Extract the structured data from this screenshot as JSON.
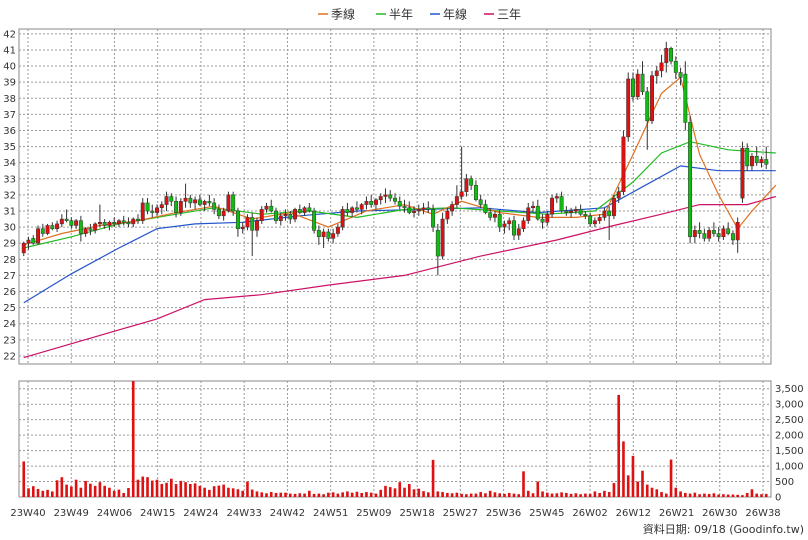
{
  "chart_data": {
    "type": "candlestick",
    "legend": {
      "position": "top-center",
      "items": [
        {
          "label": "季線",
          "color": "#e07020"
        },
        {
          "label": "半年",
          "color": "#22bb22"
        },
        {
          "label": "年線",
          "color": "#2255cc"
        },
        {
          "label": "三年",
          "color": "#cc1166"
        }
      ]
    },
    "x_ticks": [
      "23W40",
      "23W49",
      "24W06",
      "24W15",
      "24W24",
      "24W33",
      "24W42",
      "24W51",
      "25W09",
      "25W18",
      "25W27",
      "25W36",
      "25W45",
      "26W02",
      "26W12",
      "26W21",
      "26W30",
      "26W38"
    ],
    "price_axis": {
      "min": 21.5,
      "max": 42.3,
      "ticks": [
        22,
        23,
        24,
        25,
        26,
        27,
        28,
        29,
        30,
        31,
        32,
        33,
        34,
        35,
        36,
        37,
        38,
        39,
        40,
        41,
        42
      ],
      "position": "left"
    },
    "volume_axis": {
      "min": 0,
      "max": 3750,
      "ticks": [
        "0",
        "500",
        "1,000",
        "1,500",
        "2,000",
        "2,500",
        "3,000",
        "3,500"
      ],
      "position": "right"
    },
    "grid": true,
    "colors": {
      "up": "#dd1111",
      "down": "#11bb11",
      "volume": "#dd1111",
      "grid": "#9a9a9a"
    },
    "candles": [
      [
        28.4,
        29.1,
        28.2,
        29.0
      ],
      [
        29.0,
        29.4,
        28.6,
        29.2
      ],
      [
        29.3,
        29.5,
        28.9,
        29.0
      ],
      [
        29.0,
        30.1,
        28.9,
        29.9
      ],
      [
        29.9,
        30.2,
        29.4,
        29.6
      ],
      [
        29.6,
        30.2,
        29.5,
        30.1
      ],
      [
        30.1,
        30.3,
        29.8,
        29.9
      ],
      [
        29.9,
        30.4,
        29.7,
        30.2
      ],
      [
        30.2,
        30.8,
        30.0,
        30.5
      ],
      [
        30.5,
        31.1,
        30.3,
        30.4
      ],
      [
        30.4,
        30.6,
        29.9,
        30.1
      ],
      [
        30.1,
        30.5,
        29.9,
        30.4
      ],
      [
        30.4,
        30.7,
        29.1,
        29.6
      ],
      [
        29.6,
        30.0,
        29.4,
        29.9
      ],
      [
        29.9,
        30.2,
        29.5,
        29.8
      ],
      [
        29.8,
        30.3,
        29.6,
        30.2
      ],
      [
        30.2,
        31.4,
        30.0,
        30.3
      ],
      [
        30.3,
        30.5,
        29.9,
        30.1
      ],
      [
        30.1,
        30.4,
        29.8,
        30.3
      ],
      [
        30.3,
        30.6,
        30.0,
        30.2
      ],
      [
        30.2,
        30.5,
        30.0,
        30.4
      ],
      [
        30.4,
        30.7,
        30.1,
        30.3
      ],
      [
        30.3,
        30.6,
        30.0,
        30.2
      ],
      [
        30.2,
        30.6,
        30.0,
        30.5
      ],
      [
        30.5,
        30.8,
        30.2,
        30.4
      ],
      [
        30.4,
        31.8,
        30.2,
        31.5
      ],
      [
        31.5,
        31.8,
        30.8,
        31.0
      ],
      [
        31.0,
        31.4,
        30.6,
        30.9
      ],
      [
        30.9,
        31.4,
        30.7,
        31.2
      ],
      [
        31.2,
        31.6,
        30.8,
        31.4
      ],
      [
        31.4,
        32.2,
        31.0,
        31.9
      ],
      [
        31.9,
        32.1,
        31.3,
        31.6
      ],
      [
        31.6,
        31.9,
        30.6,
        30.9
      ],
      [
        30.9,
        31.8,
        30.7,
        31.6
      ],
      [
        31.6,
        32.7,
        31.2,
        31.8
      ],
      [
        31.8,
        32.0,
        31.2,
        31.5
      ],
      [
        31.5,
        31.9,
        31.1,
        31.7
      ],
      [
        31.7,
        32.0,
        31.3,
        31.4
      ],
      [
        31.4,
        31.7,
        31.0,
        31.6
      ],
      [
        31.6,
        32.0,
        31.3,
        31.5
      ],
      [
        31.5,
        31.8,
        30.8,
        31.1
      ],
      [
        31.1,
        31.4,
        30.5,
        30.7
      ],
      [
        30.7,
        31.2,
        30.4,
        31.0
      ],
      [
        31.0,
        32.2,
        30.9,
        32.0
      ],
      [
        32.0,
        32.2,
        30.7,
        31.0
      ],
      [
        31.0,
        31.2,
        29.4,
        29.9
      ],
      [
        29.9,
        30.3,
        29.6,
        30.0
      ],
      [
        30.0,
        30.8,
        29.8,
        30.6
      ],
      [
        30.6,
        30.9,
        28.2,
        29.8
      ],
      [
        29.8,
        30.6,
        29.4,
        30.4
      ],
      [
        30.4,
        31.3,
        30.2,
        31.1
      ],
      [
        31.1,
        31.5,
        30.9,
        31.3
      ],
      [
        31.3,
        31.7,
        30.9,
        31.0
      ],
      [
        31.0,
        31.2,
        30.2,
        30.4
      ],
      [
        30.4,
        30.9,
        30.1,
        30.7
      ],
      [
        30.7,
        31.1,
        30.4,
        30.8
      ],
      [
        30.8,
        31.0,
        30.2,
        30.5
      ],
      [
        30.5,
        31.2,
        30.3,
        31.1
      ],
      [
        31.1,
        31.4,
        30.8,
        30.9
      ],
      [
        30.9,
        31.3,
        30.7,
        31.2
      ],
      [
        31.2,
        31.5,
        30.9,
        31.0
      ],
      [
        31.0,
        31.2,
        29.6,
        29.8
      ],
      [
        29.8,
        30.1,
        28.9,
        29.4
      ],
      [
        29.4,
        29.9,
        28.7,
        29.7
      ],
      [
        29.7,
        29.9,
        29.1,
        29.3
      ],
      [
        29.3,
        29.9,
        29.0,
        29.6
      ],
      [
        29.6,
        30.2,
        29.4,
        30.0
      ],
      [
        30.0,
        31.3,
        29.8,
        31.1
      ],
      [
        31.1,
        31.5,
        30.7,
        30.9
      ],
      [
        30.9,
        31.3,
        30.6,
        31.2
      ],
      [
        31.2,
        31.6,
        30.9,
        31.1
      ],
      [
        31.1,
        31.5,
        30.8,
        31.4
      ],
      [
        31.4,
        31.9,
        31.1,
        31.6
      ],
      [
        31.6,
        32.0,
        31.2,
        31.4
      ],
      [
        31.4,
        31.8,
        31.1,
        31.7
      ],
      [
        31.7,
        32.1,
        31.4,
        31.9
      ],
      [
        31.9,
        32.4,
        31.5,
        32.0
      ],
      [
        32.0,
        32.3,
        31.6,
        31.8
      ],
      [
        31.8,
        32.1,
        31.4,
        31.6
      ],
      [
        31.6,
        31.9,
        31.1,
        31.3
      ],
      [
        31.3,
        31.7,
        30.9,
        31.2
      ],
      [
        31.2,
        31.6,
        30.8,
        30.9
      ],
      [
        30.9,
        31.3,
        30.6,
        31.0
      ],
      [
        31.0,
        31.4,
        30.7,
        31.1
      ],
      [
        31.1,
        31.5,
        30.8,
        31.2
      ],
      [
        31.2,
        31.6,
        30.9,
        31.1
      ],
      [
        31.1,
        31.4,
        29.7,
        30.0
      ],
      [
        29.8,
        30.2,
        27.0,
        28.2
      ],
      [
        28.2,
        30.9,
        28.0,
        30.5
      ],
      [
        30.5,
        31.2,
        30.2,
        31.0
      ],
      [
        31.0,
        31.6,
        30.7,
        31.4
      ],
      [
        31.4,
        32.6,
        31.2,
        31.9
      ],
      [
        31.9,
        35.0,
        31.7,
        32.2
      ],
      [
        32.2,
        33.3,
        31.9,
        33.0
      ],
      [
        33.0,
        33.2,
        32.3,
        32.6
      ],
      [
        32.6,
        32.9,
        31.6,
        31.7
      ],
      [
        31.7,
        32.0,
        31.2,
        31.4
      ],
      [
        31.4,
        31.7,
        30.8,
        30.9
      ],
      [
        30.9,
        31.2,
        30.4,
        30.6
      ],
      [
        30.6,
        31.0,
        30.3,
        30.8
      ],
      [
        30.8,
        31.1,
        29.7,
        30.0
      ],
      [
        30.0,
        30.4,
        29.6,
        30.2
      ],
      [
        30.2,
        30.6,
        29.8,
        30.4
      ],
      [
        30.4,
        30.7,
        29.2,
        29.5
      ],
      [
        29.5,
        30.2,
        29.2,
        29.9
      ],
      [
        29.9,
        30.6,
        29.7,
        30.4
      ],
      [
        30.4,
        31.5,
        30.2,
        31.2
      ],
      [
        31.2,
        31.6,
        30.9,
        31.3
      ],
      [
        31.3,
        31.7,
        30.4,
        30.5
      ],
      [
        30.5,
        30.8,
        29.9,
        30.3
      ],
      [
        30.3,
        31.0,
        30.1,
        30.8
      ],
      [
        30.8,
        32.0,
        30.6,
        31.8
      ],
      [
        31.8,
        32.1,
        31.5,
        31.9
      ],
      [
        31.9,
        32.2,
        30.9,
        31.0
      ],
      [
        31.0,
        31.3,
        30.7,
        30.9
      ],
      [
        30.9,
        31.2,
        30.6,
        31.0
      ],
      [
        31.0,
        31.3,
        30.8,
        31.1
      ],
      [
        31.1,
        31.4,
        30.7,
        30.8
      ],
      [
        30.8,
        31.0,
        30.5,
        30.7
      ],
      [
        30.7,
        30.9,
        30.0,
        30.2
      ],
      [
        30.2,
        30.6,
        30.0,
        30.4
      ],
      [
        30.4,
        30.8,
        30.2,
        30.6
      ],
      [
        30.6,
        31.2,
        30.4,
        31.0
      ],
      [
        31.0,
        31.3,
        29.2,
        30.7
      ],
      [
        30.7,
        32.0,
        30.5,
        31.8
      ],
      [
        31.8,
        32.5,
        31.5,
        32.2
      ],
      [
        32.2,
        36.0,
        32.0,
        35.6
      ],
      [
        35.6,
        39.6,
        35.3,
        39.2
      ],
      [
        39.2,
        39.6,
        37.8,
        38.1
      ],
      [
        38.1,
        39.8,
        37.9,
        39.5
      ],
      [
        39.5,
        40.3,
        38.2,
        38.4
      ],
      [
        38.4,
        38.7,
        34.8,
        36.6
      ],
      [
        36.6,
        39.7,
        36.4,
        39.4
      ],
      [
        39.4,
        40.0,
        38.9,
        39.7
      ],
      [
        39.7,
        40.7,
        39.3,
        40.2
      ],
      [
        40.2,
        41.5,
        39.6,
        41.1
      ],
      [
        41.1,
        41.2,
        40.1,
        40.3
      ],
      [
        40.3,
        40.6,
        39.2,
        39.6
      ],
      [
        39.6,
        39.9,
        38.8,
        39.3
      ],
      [
        39.5,
        40.3,
        36.0,
        36.5
      ],
      [
        36.5,
        36.9,
        29.0,
        29.4
      ],
      [
        29.4,
        30.1,
        29.0,
        29.8
      ],
      [
        29.8,
        30.3,
        29.3,
        29.6
      ],
      [
        29.6,
        29.9,
        29.1,
        29.3
      ],
      [
        29.3,
        30.0,
        29.1,
        29.8
      ],
      [
        29.8,
        30.3,
        29.4,
        29.6
      ],
      [
        29.6,
        30.0,
        29.1,
        29.4
      ],
      [
        29.4,
        30.1,
        29.2,
        29.9
      ],
      [
        29.9,
        30.3,
        29.5,
        29.6
      ],
      [
        29.6,
        29.8,
        28.9,
        29.2
      ],
      [
        29.2,
        30.6,
        28.4,
        30.3
      ],
      [
        31.8,
        35.3,
        31.5,
        34.9
      ],
      [
        34.9,
        35.2,
        33.5,
        33.8
      ],
      [
        33.8,
        34.6,
        33.5,
        34.4
      ],
      [
        34.4,
        35.0,
        33.8,
        34.0
      ],
      [
        34.0,
        34.4,
        33.7,
        34.2
      ],
      [
        34.2,
        35.0,
        33.6,
        33.9
      ]
    ],
    "ma_quarter": [
      [
        0,
        28.9
      ],
      [
        8,
        29.6
      ],
      [
        16,
        30.1
      ],
      [
        24,
        30.4
      ],
      [
        32,
        30.9
      ],
      [
        40,
        31.3
      ],
      [
        48,
        30.5
      ],
      [
        56,
        30.9
      ],
      [
        64,
        30.0
      ],
      [
        72,
        31.0
      ],
      [
        80,
        31.4
      ],
      [
        86,
        30.8
      ],
      [
        92,
        31.6
      ],
      [
        100,
        30.9
      ],
      [
        108,
        30.6
      ],
      [
        116,
        30.6
      ],
      [
        122,
        30.8
      ],
      [
        128,
        34.5
      ],
      [
        134,
        38.3
      ],
      [
        138,
        39.3
      ],
      [
        142,
        34.5
      ],
      [
        146,
        32.0
      ],
      [
        150,
        29.9
      ],
      [
        153,
        31.0
      ],
      [
        158,
        32.6
      ]
    ],
    "ma_halfyear": [
      [
        0,
        28.7
      ],
      [
        10,
        29.4
      ],
      [
        20,
        30.2
      ],
      [
        30,
        30.7
      ],
      [
        40,
        31.2
      ],
      [
        50,
        30.8
      ],
      [
        60,
        31.0
      ],
      [
        70,
        30.6
      ],
      [
        80,
        31.1
      ],
      [
        90,
        31.2
      ],
      [
        100,
        31.0
      ],
      [
        110,
        30.8
      ],
      [
        120,
        31.0
      ],
      [
        128,
        32.8
      ],
      [
        134,
        34.6
      ],
      [
        140,
        35.3
      ],
      [
        148,
        34.8
      ],
      [
        158,
        34.6
      ]
    ],
    "ma_year": [
      [
        0,
        25.3
      ],
      [
        10,
        27.1
      ],
      [
        20,
        28.7
      ],
      [
        28,
        29.9
      ],
      [
        36,
        30.2
      ],
      [
        46,
        30.3
      ],
      [
        58,
        30.7
      ],
      [
        70,
        31.0
      ],
      [
        84,
        31.1
      ],
      [
        96,
        31.2
      ],
      [
        108,
        30.9
      ],
      [
        122,
        31.2
      ],
      [
        130,
        32.5
      ],
      [
        138,
        33.8
      ],
      [
        146,
        33.5
      ],
      [
        158,
        33.5
      ]
    ],
    "ma_three_year": [
      [
        0,
        21.9
      ],
      [
        14,
        23.1
      ],
      [
        28,
        24.3
      ],
      [
        38,
        25.5
      ],
      [
        50,
        25.8
      ],
      [
        64,
        26.4
      ],
      [
        80,
        27.0
      ],
      [
        96,
        28.2
      ],
      [
        112,
        29.2
      ],
      [
        124,
        30.1
      ],
      [
        134,
        30.8
      ],
      [
        142,
        31.4
      ],
      [
        152,
        31.4
      ],
      [
        158,
        31.9
      ]
    ],
    "volume": [
      1150,
      280,
      350,
      260,
      200,
      230,
      180,
      540,
      640,
      400,
      340,
      560,
      300,
      520,
      430,
      360,
      480,
      360,
      300,
      200,
      240,
      130,
      290,
      3750,
      560,
      660,
      640,
      530,
      560,
      420,
      460,
      590,
      420,
      520,
      480,
      420,
      440,
      360,
      300,
      230,
      350,
      370,
      400,
      300,
      280,
      250,
      200,
      500,
      240,
      180,
      150,
      120,
      160,
      130,
      140,
      140,
      110,
      100,
      120,
      110,
      200,
      100,
      110,
      90,
      140,
      150,
      110,
      150,
      180,
      140,
      170,
      130,
      160,
      140,
      110,
      230,
      360,
      320,
      280,
      480,
      300,
      420,
      250,
      270,
      190,
      150,
      1200,
      180,
      160,
      130,
      120,
      140,
      100,
      90,
      110,
      110,
      160,
      120,
      200,
      150,
      120,
      100,
      130,
      110,
      90,
      830,
      200,
      120,
      500,
      180,
      140,
      110,
      120,
      150,
      130,
      100,
      120,
      90,
      110,
      100,
      180,
      130,
      200,
      160,
      450,
      3300,
      1800,
      700,
      1330,
      500,
      850,
      400,
      300,
      250,
      160,
      110,
      1210,
      300,
      180,
      130,
      110,
      140,
      90,
      110,
      100,
      120,
      80,
      90,
      80,
      80,
      70,
      60,
      130,
      250,
      110,
      90,
      100
    ],
    "footnote": "資料日期: 09/18  (Goodinfo.tw)"
  }
}
